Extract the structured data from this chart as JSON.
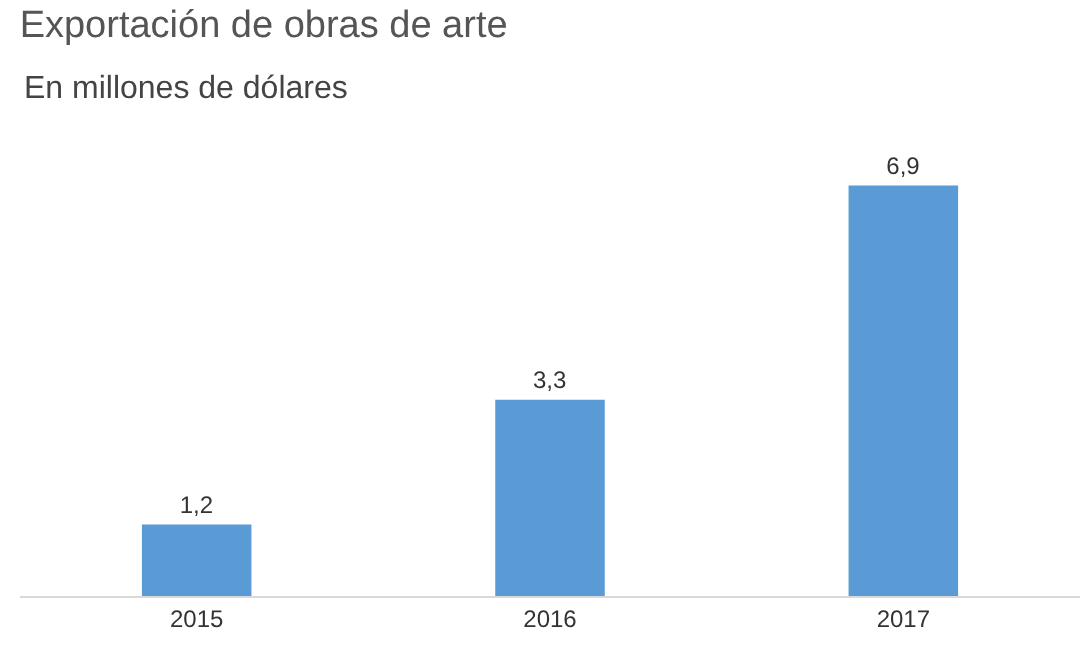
{
  "chart_data": {
    "type": "bar",
    "title": "Exportación de obras de arte",
    "subtitle": "En millones de dólares",
    "categories": [
      "2015",
      "2016",
      "2017"
    ],
    "values": [
      1.2,
      3.3,
      6.9
    ],
    "value_labels": [
      "1,2",
      "3,3",
      "6,9"
    ],
    "color": "#5b9bd5",
    "tick_labels": "x",
    "grid": false
  }
}
